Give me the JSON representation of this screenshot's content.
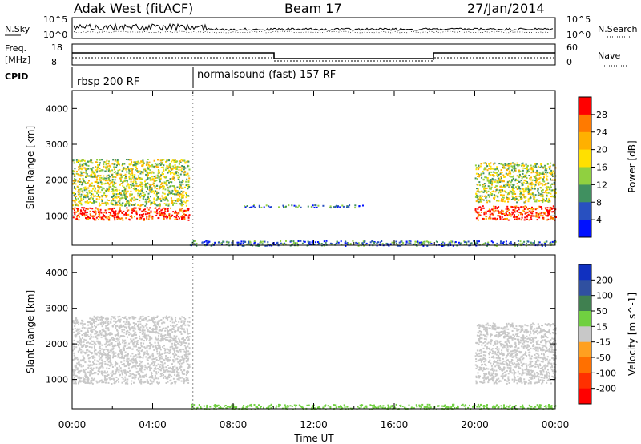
{
  "header": {
    "station": "Adak West (fitACF)",
    "beam": "Beam 17",
    "date": "27/Jan/2014"
  },
  "panels": {
    "nsky": {
      "label": "N.Sky",
      "ticks": [
        "10^5",
        "10^0"
      ]
    },
    "nsearch": {
      "label": "N.Search",
      "ticks": [
        "10^5",
        "10^0"
      ]
    },
    "freq": {
      "label_line1": "Freq.",
      "label_line2": "[MHz]",
      "ticks": [
        "18",
        "8"
      ]
    },
    "nave": {
      "label": "Nave",
      "ticks": [
        "60",
        "0"
      ]
    },
    "cpid": {
      "label": "CPID",
      "modes": [
        {
          "name": "rbsp 200 RF",
          "start": "00:00"
        },
        {
          "name": "normalsound (fast) 157 RF",
          "start": "06:00"
        }
      ]
    }
  },
  "colorbars": {
    "power": {
      "label": "Power [dB]",
      "ticks": [
        "28",
        "24",
        "20",
        "16",
        "12",
        "8",
        "4"
      ],
      "colors": [
        "#ff0000",
        "#ff7a00",
        "#ffb000",
        "#ffe000",
        "#90d040",
        "#409060",
        "#2850c0",
        "#0010ff"
      ]
    },
    "velocity": {
      "label": "Velocity [m s^-1]",
      "ticks": [
        "200",
        "100",
        "50",
        "15",
        "-15",
        "-50",
        "-100",
        "-200"
      ],
      "colors": [
        "#1030c0",
        "#3050a0",
        "#408050",
        "#70d040",
        "#c8c8c8",
        "#ffa020",
        "#ff7000",
        "#ff3000",
        "#ff0000"
      ]
    }
  },
  "chart_data": [
    {
      "type": "heatmap",
      "name": "Power",
      "ylabel": "Slant Range [km]",
      "xlabel": "Time UT",
      "y_ticks": [
        1000,
        2000,
        3000,
        4000
      ],
      "ylim": [
        180,
        4500
      ],
      "x_tick_labels": [
        "00:00",
        "04:00",
        "08:00",
        "12:00",
        "16:00",
        "20:00",
        "00:00"
      ],
      "xlim_hours": [
        0,
        24
      ],
      "regions": [
        {
          "t_start": 0.0,
          "t_end": 5.8,
          "r_min": 900,
          "r_max": 1250,
          "dB": 28
        },
        {
          "t_start": 0.0,
          "t_end": 5.8,
          "r_min": 1300,
          "r_max": 2600,
          "dB": 14
        },
        {
          "t_start": 5.8,
          "t_end": 24.0,
          "r_min": 180,
          "r_max": 320,
          "dB": 6
        },
        {
          "t_start": 8.5,
          "t_end": 14.5,
          "r_min": 1250,
          "r_max": 1320,
          "dB": 6
        },
        {
          "t_start": 20.0,
          "t_end": 24.0,
          "r_min": 900,
          "r_max": 1300,
          "dB": 28
        },
        {
          "t_start": 20.0,
          "t_end": 24.0,
          "r_min": 1400,
          "r_max": 2500,
          "dB": 14
        }
      ]
    },
    {
      "type": "heatmap",
      "name": "Velocity",
      "ylabel": "Slant Range [km]",
      "xlabel": "Time UT",
      "y_ticks": [
        1000,
        2000,
        3000,
        4000
      ],
      "ylim": [
        180,
        4500
      ],
      "x_tick_labels": [
        "00:00",
        "04:00",
        "08:00",
        "12:00",
        "16:00",
        "20:00",
        "00:00"
      ],
      "xlim_hours": [
        0,
        24
      ],
      "regions": [
        {
          "t_start": 0.0,
          "t_end": 5.8,
          "r_min": 900,
          "r_max": 2800,
          "velocity": 0
        },
        {
          "t_start": 5.8,
          "t_end": 24.0,
          "r_min": 180,
          "r_max": 320,
          "velocity": 30
        },
        {
          "t_start": 20.0,
          "t_end": 24.0,
          "r_min": 900,
          "r_max": 2600,
          "velocity": 0
        }
      ]
    }
  ]
}
